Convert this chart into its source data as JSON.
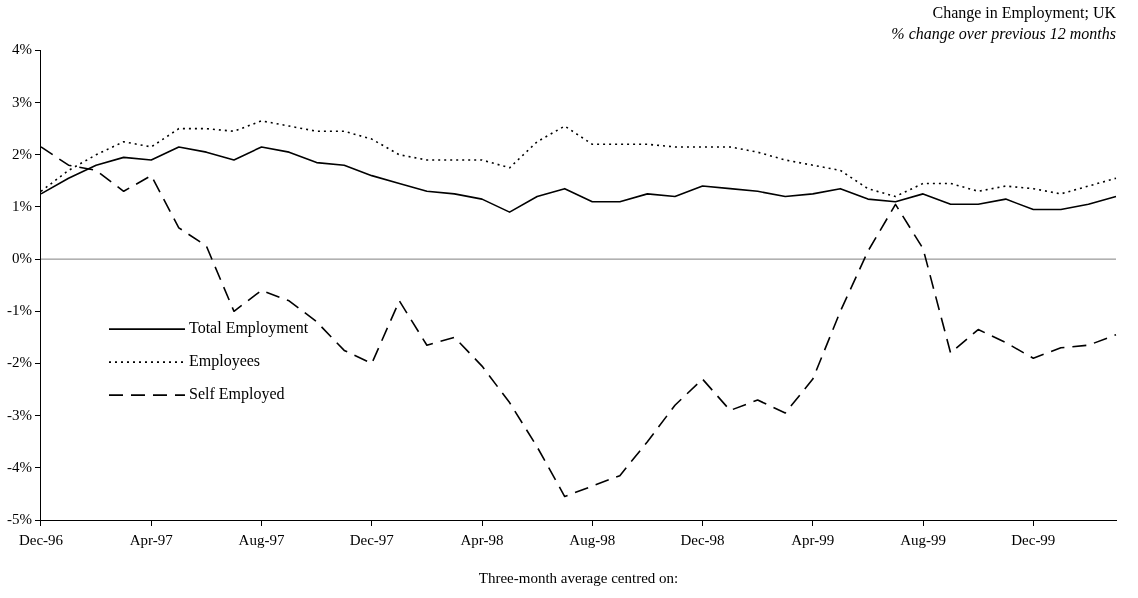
{
  "chart_data": {
    "type": "line",
    "title": "Change in Employment; UK",
    "subtitle": "% change over previous 12 months",
    "xlabel": "Three-month average centred on:",
    "categories": [
      "Dec-96",
      null,
      null,
      null,
      "Apr-97",
      null,
      null,
      null,
      "Aug-97",
      null,
      null,
      null,
      "Dec-97",
      null,
      null,
      null,
      "Apr-98",
      null,
      null,
      null,
      "Aug-98",
      null,
      null,
      null,
      "Dec-98",
      null,
      null,
      null,
      "Apr-99",
      null,
      null,
      null,
      "Aug-99",
      null,
      null,
      null,
      "Dec-99",
      null,
      null,
      null
    ],
    "series": [
      {
        "name": "Total Employment",
        "color": "#000000",
        "line_style": "solid",
        "values": [
          1.25,
          1.55,
          1.8,
          1.95,
          1.9,
          2.15,
          2.05,
          1.9,
          2.15,
          2.05,
          1.85,
          1.8,
          1.6,
          1.45,
          1.3,
          1.25,
          1.15,
          0.9,
          1.2,
          1.35,
          1.1,
          1.1,
          1.25,
          1.2,
          1.4,
          1.35,
          1.3,
          1.2,
          1.25,
          1.35,
          1.15,
          1.1,
          1.25,
          1.05,
          1.05,
          1.15,
          0.95,
          0.95,
          1.05,
          1.2
        ]
      },
      {
        "name": "Employees",
        "color": "#000000",
        "line_style": "dotted",
        "values": [
          1.3,
          1.7,
          2.0,
          2.25,
          2.15,
          2.5,
          2.5,
          2.45,
          2.65,
          2.55,
          2.45,
          2.45,
          2.3,
          2.0,
          1.9,
          1.9,
          1.9,
          1.75,
          2.25,
          2.55,
          2.2,
          2.2,
          2.2,
          2.15,
          2.15,
          2.15,
          2.05,
          1.9,
          1.8,
          1.7,
          1.35,
          1.2,
          1.45,
          1.45,
          1.3,
          1.4,
          1.35,
          1.25,
          1.4,
          1.55
        ]
      },
      {
        "name": "Self Employed",
        "color": "#000000",
        "line_style": "dashed",
        "values": [
          2.15,
          1.8,
          1.7,
          1.3,
          1.6,
          0.6,
          0.25,
          -1.0,
          -0.6,
          -0.8,
          -1.2,
          -1.75,
          -2.0,
          -0.8,
          -1.65,
          -1.5,
          -2.05,
          -2.75,
          -3.6,
          -4.55,
          -4.35,
          -4.15,
          -3.5,
          -2.8,
          -2.3,
          -2.9,
          -2.7,
          -2.95,
          -2.3,
          -1.0,
          0.15,
          1.05,
          0.2,
          -1.8,
          -1.35,
          -1.6,
          -1.9,
          -1.7,
          -1.65,
          -1.45
        ]
      }
    ],
    "ylim": [
      -5,
      4
    ],
    "yticks": [
      {
        "value": -5,
        "label": "-5%"
      },
      {
        "value": -4,
        "label": "-4%"
      },
      {
        "value": -3,
        "label": "-3%"
      },
      {
        "value": -2,
        "label": "-2%"
      },
      {
        "value": -1,
        "label": "-1%"
      },
      {
        "value": 0,
        "label": "0%"
      },
      {
        "value": 1,
        "label": "1%"
      },
      {
        "value": 2,
        "label": "2%"
      },
      {
        "value": 3,
        "label": "3%"
      },
      {
        "value": 4,
        "label": "4%"
      }
    ],
    "ref_lines": [
      {
        "axis": "y",
        "value": 0,
        "color": "#808080"
      }
    ],
    "grid": false,
    "legend": "left",
    "marker": "none"
  }
}
